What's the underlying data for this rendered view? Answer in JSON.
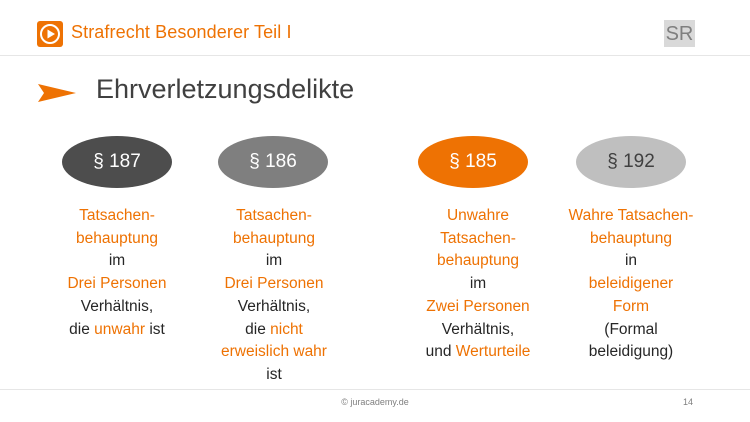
{
  "header": {
    "title": "Strafrecht Besonderer Teil I",
    "badge": "SR",
    "logo_icon": "play-icon",
    "accent_color": "#ee7203"
  },
  "slide": {
    "title": "Ehrverletzungsdelikte",
    "arrow_icon": "orange-arrow-icon"
  },
  "columns": [
    {
      "paragraph": "§ 187",
      "oval_color": "#4d4d4d",
      "lines": [
        [
          {
            "t": "Tatsachen-",
            "o": true
          }
        ],
        [
          {
            "t": "behauptung",
            "o": true
          }
        ],
        [
          {
            "t": "im",
            "o": false
          }
        ],
        [
          {
            "t": "Drei Personen",
            "o": true
          }
        ],
        [
          {
            "t": "Verhältnis,",
            "o": false
          }
        ],
        [
          {
            "t": "die ",
            "o": false
          },
          {
            "t": "unwahr",
            "o": true
          },
          {
            "t": " ist",
            "o": false
          }
        ]
      ]
    },
    {
      "paragraph": "§ 186",
      "oval_color": "#7f7f7f",
      "lines": [
        [
          {
            "t": "Tatsachen-",
            "o": true
          }
        ],
        [
          {
            "t": "behauptung",
            "o": true
          }
        ],
        [
          {
            "t": "im",
            "o": false
          }
        ],
        [
          {
            "t": "Drei Personen",
            "o": true
          }
        ],
        [
          {
            "t": "Verhältnis,",
            "o": false
          }
        ],
        [
          {
            "t": "die ",
            "o": false
          },
          {
            "t": "nicht",
            "o": true
          }
        ],
        [
          {
            "t": "erweislich wahr",
            "o": true
          }
        ],
        [
          {
            "t": "ist",
            "o": false
          }
        ]
      ]
    },
    {
      "paragraph": "§ 185",
      "oval_color": "#ee7203",
      "lines": [
        [
          {
            "t": "Unwahre",
            "o": true
          }
        ],
        [
          {
            "t": "Tatsachen-",
            "o": true
          }
        ],
        [
          {
            "t": "behauptung",
            "o": true
          }
        ],
        [
          {
            "t": "im",
            "o": false
          }
        ],
        [
          {
            "t": "Zwei Personen",
            "o": true
          }
        ],
        [
          {
            "t": "Verhältnis,",
            "o": false
          }
        ],
        [
          {
            "t": "und ",
            "o": false
          },
          {
            "t": "Werturteile",
            "o": true
          }
        ]
      ]
    },
    {
      "paragraph": "§ 192",
      "oval_color": "#bfbfbf",
      "lines": [
        [
          {
            "t": "Wahre Tatsachen-",
            "o": true
          }
        ],
        [
          {
            "t": "behauptung",
            "o": true
          }
        ],
        [
          {
            "t": "in",
            "o": false
          }
        ],
        [
          {
            "t": "beleidigener",
            "o": true
          }
        ],
        [
          {
            "t": "Form",
            "o": true
          }
        ],
        [
          {
            "t": "(Formal",
            "o": false
          }
        ],
        [
          {
            "t": "beleidigung)",
            "o": false
          }
        ]
      ]
    }
  ],
  "footer": {
    "copyright": "© juracademy.de",
    "page": "14"
  }
}
